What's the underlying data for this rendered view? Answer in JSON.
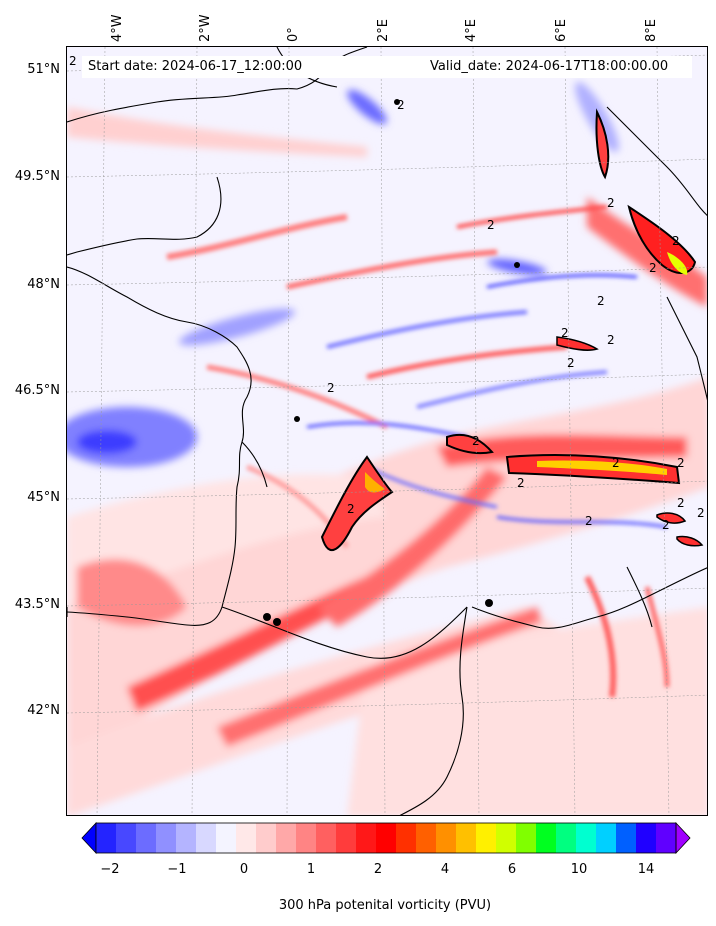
{
  "header": {
    "start_date": "Start date: 2024-06-17_12:00:00",
    "valid_date": "Valid_date: 2024-06-17T18:00:00.00"
  },
  "axes": {
    "lon_labels": [
      "4°W",
      "2°W",
      "0°",
      "2°E",
      "4°E",
      "6°E",
      "8°E"
    ],
    "lat_labels": [
      "51°N",
      "49.5°N",
      "48°N",
      "46.5°N",
      "45°N",
      "43.5°N",
      "42°N"
    ]
  },
  "contour_label": "2",
  "colorbar": {
    "label": "300 hPa potenital vorticity (PVU)",
    "ticks": [
      "−2",
      "−1",
      "0",
      "1",
      "2",
      "4",
      "6",
      "10",
      "14"
    ],
    "colors": [
      "#0000ff",
      "#2424ff",
      "#4848ff",
      "#6c6cff",
      "#9090ff",
      "#b4b4ff",
      "#d8d8ff",
      "#f4f4ff",
      "#ffe8e8",
      "#ffcccc",
      "#ffa8a8",
      "#ff8484",
      "#ff6060",
      "#ff3c3c",
      "#ff1818",
      "#ff0000",
      "#ff3000",
      "#ff6000",
      "#ff9000",
      "#ffc000",
      "#fff000",
      "#d0ff00",
      "#80ff00",
      "#00ff20",
      "#00ff80",
      "#00ffd0",
      "#00d0ff",
      "#0060ff",
      "#2000ff",
      "#6000ff",
      "#a000ff"
    ]
  }
}
